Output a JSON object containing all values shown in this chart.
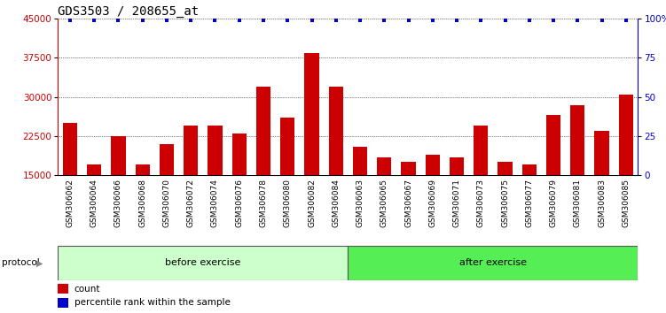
{
  "title": "GDS3503 / 208655_at",
  "categories": [
    "GSM306062",
    "GSM306064",
    "GSM306066",
    "GSM306068",
    "GSM306070",
    "GSM306072",
    "GSM306074",
    "GSM306076",
    "GSM306078",
    "GSM306080",
    "GSM306082",
    "GSM306084",
    "GSM306063",
    "GSM306065",
    "GSM306067",
    "GSM306069",
    "GSM306071",
    "GSM306073",
    "GSM306075",
    "GSM306077",
    "GSM306079",
    "GSM306081",
    "GSM306083",
    "GSM306085"
  ],
  "bar_values": [
    25000,
    17000,
    22500,
    17000,
    21000,
    24500,
    24500,
    23000,
    32000,
    26000,
    38500,
    32000,
    20500,
    18500,
    17500,
    19000,
    18500,
    24500,
    17500,
    17000,
    26500,
    28500,
    23500,
    30500
  ],
  "percentile_values": [
    99,
    99,
    99,
    99,
    99,
    99,
    99,
    99,
    99,
    99,
    99,
    99,
    99,
    99,
    99,
    99,
    99,
    99,
    99,
    99,
    99,
    99,
    99,
    99
  ],
  "bar_color": "#cc0000",
  "percentile_color": "#0000cc",
  "ylim_left": [
    15000,
    45000
  ],
  "ylim_right": [
    0,
    100
  ],
  "yticks_left": [
    15000,
    22500,
    30000,
    37500,
    45000
  ],
  "yticks_right": [
    0,
    25,
    50,
    75,
    100
  ],
  "ytick_labels_right": [
    "0",
    "25",
    "50",
    "75",
    "100%"
  ],
  "grid_lines": [
    22500,
    30000,
    37500,
    45000
  ],
  "before_exercise_count": 12,
  "after_exercise_count": 12,
  "protocol_label": "protocol",
  "before_label": "before exercise",
  "after_label": "after exercise",
  "before_color": "#ccffcc",
  "after_color": "#55ee55",
  "legend_count_label": "count",
  "legend_percentile_label": "percentile rank within the sample",
  "title_fontsize": 10,
  "tick_fontsize": 7.5,
  "bar_width": 0.6,
  "xlabel_fontsize": 6.5,
  "bar_bottom": 15000
}
